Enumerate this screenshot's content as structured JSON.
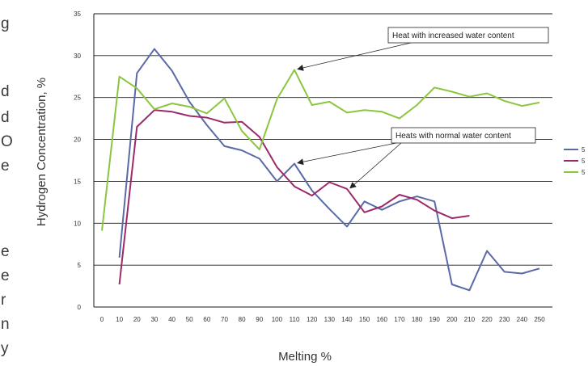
{
  "left_fragments": [
    "g",
    "d",
    "d",
    "O",
    "e",
    "e",
    "e",
    "r",
    "n",
    "y"
  ],
  "chart_data": {
    "type": "line",
    "title": "",
    "xlabel": "Melting %",
    "ylabel": "Hydrogen Concentration, %",
    "x": [
      0,
      10,
      20,
      30,
      40,
      50,
      60,
      70,
      80,
      90,
      100,
      110,
      120,
      130,
      140,
      150,
      160,
      170,
      180,
      190,
      200,
      210,
      220,
      230,
      240,
      250
    ],
    "xlim": [
      0,
      250
    ],
    "ylim": [
      0,
      35
    ],
    "yticks": [
      0,
      5,
      10,
      15,
      20,
      25,
      30,
      35
    ],
    "grid": "horizontal",
    "legend_position": "right",
    "series": [
      {
        "name": "5",
        "color": "#5a6aa6",
        "values": [
          null,
          5.9,
          27.9,
          30.8,
          28.2,
          24.5,
          21.7,
          19.2,
          18.7,
          17.7,
          15.0,
          17.1,
          13.9,
          11.7,
          9.6,
          12.6,
          11.6,
          12.6,
          13.2,
          12.6,
          2.7,
          2.0,
          6.7,
          4.2,
          4.0,
          4.6
        ]
      },
      {
        "name": "5",
        "color": "#9c2a6a",
        "values": [
          null,
          2.7,
          21.5,
          23.5,
          23.3,
          22.8,
          22.6,
          22.0,
          22.1,
          20.3,
          16.7,
          14.4,
          13.3,
          14.9,
          14.1,
          11.3,
          12.0,
          13.4,
          12.8,
          11.5,
          10.6,
          10.9,
          null,
          null,
          null,
          null
        ]
      },
      {
        "name": "5",
        "color": "#8cc63f",
        "values": [
          9.1,
          27.5,
          26.1,
          23.6,
          24.3,
          23.9,
          23.1,
          24.9,
          21.0,
          18.8,
          24.8,
          28.3,
          24.1,
          24.5,
          23.2,
          23.5,
          23.3,
          22.5,
          24.1,
          26.2,
          25.7,
          25.1,
          25.5,
          24.6,
          24.0,
          24.4
        ]
      }
    ],
    "annotations": [
      {
        "text": "Heat with increased water content",
        "target_series": 2,
        "target_x": 110
      },
      {
        "text": "Heats with normal water content",
        "target_series": [
          0,
          1
        ],
        "target_x": [
          110,
          140
        ]
      }
    ]
  }
}
